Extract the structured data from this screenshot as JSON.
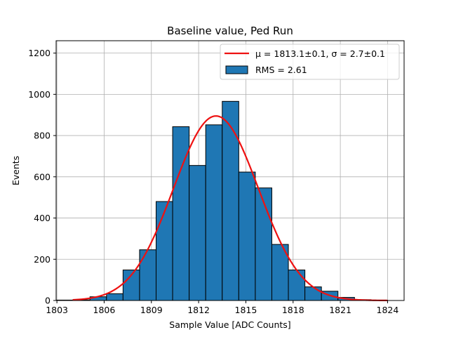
{
  "chart_data": {
    "type": "bar",
    "title": "Baseline value, Ped Run",
    "xlabel": "Sample Value [ADC Counts]",
    "ylabel": "Events",
    "xlim": [
      1802.95,
      1825.05
    ],
    "ylim": [
      0,
      1260
    ],
    "xticks": [
      1803,
      1806,
      1809,
      1812,
      1815,
      1818,
      1821,
      1824
    ],
    "yticks": [
      0,
      200,
      400,
      600,
      800,
      1000,
      1200
    ],
    "grid": true,
    "bin_width": 1.05,
    "bins": [
      {
        "x0": 1803.0,
        "value": 2
      },
      {
        "x0": 1804.05,
        "value": 3
      },
      {
        "x0": 1805.1,
        "value": 18
      },
      {
        "x0": 1806.15,
        "value": 33
      },
      {
        "x0": 1807.2,
        "value": 148
      },
      {
        "x0": 1808.25,
        "value": 246
      },
      {
        "x0": 1809.3,
        "value": 480
      },
      {
        "x0": 1810.35,
        "value": 843
      },
      {
        "x0": 1811.4,
        "value": 655
      },
      {
        "x0": 1812.45,
        "value": 852
      },
      {
        "x0": 1813.5,
        "value": 966
      },
      {
        "x0": 1814.55,
        "value": 623
      },
      {
        "x0": 1815.6,
        "value": 546
      },
      {
        "x0": 1816.65,
        "value": 272
      },
      {
        "x0": 1817.7,
        "value": 148
      },
      {
        "x0": 1818.75,
        "value": 66
      },
      {
        "x0": 1819.8,
        "value": 45
      },
      {
        "x0": 1820.85,
        "value": 15
      },
      {
        "x0": 1821.9,
        "value": 4
      },
      {
        "x0": 1822.95,
        "value": 1
      }
    ],
    "bar_color": "#1f77b4",
    "bar_edge_color": "#000000",
    "fit": {
      "name": "gaussian",
      "mu": 1813.1,
      "sigma": 2.7,
      "amplitude": 895,
      "x_range": [
        1804,
        1824
      ],
      "color": "#ee1111"
    },
    "legend": {
      "placement": "top-right",
      "entries": [
        {
          "id": "fit",
          "label": "μ = 1813.1±0.1, σ = 2.7±0.1",
          "color": "#ee1111"
        },
        {
          "id": "hist",
          "label": "RMS = 2.61",
          "color": "#1f77b4"
        }
      ]
    }
  }
}
